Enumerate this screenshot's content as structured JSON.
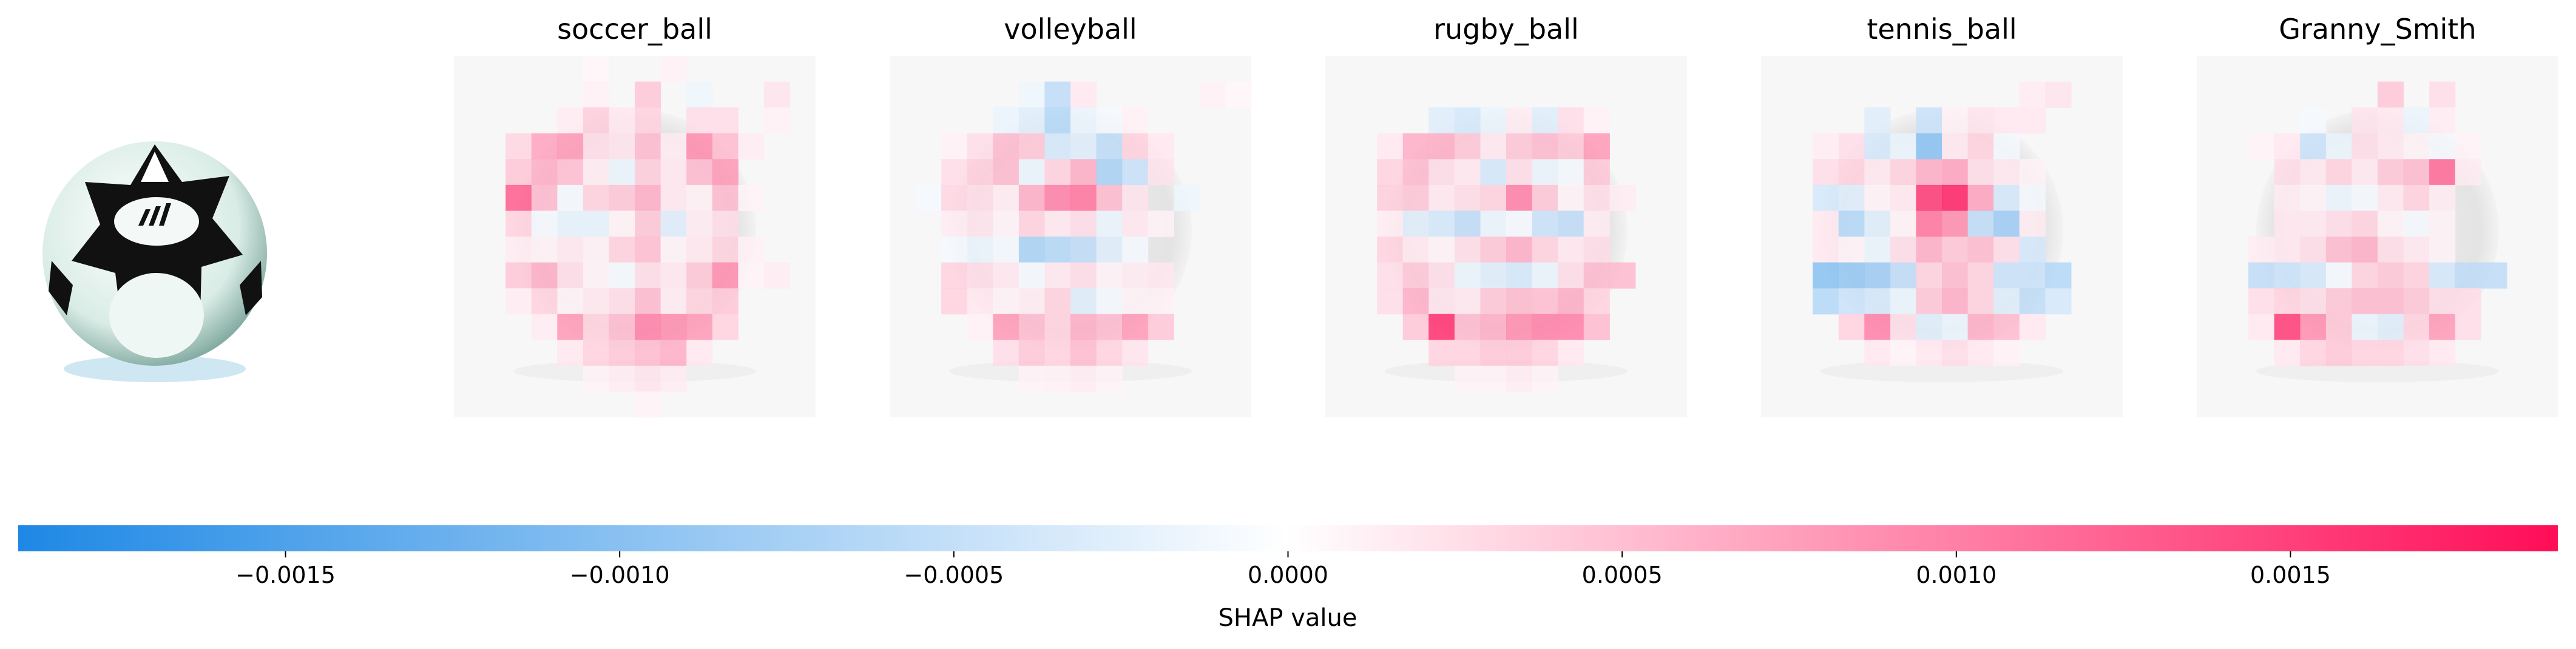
{
  "chart_data": {
    "type": "heatmap",
    "panels": [
      {
        "title": "soccer_ball",
        "grid": [
          [
            0,
            0,
            0,
            0,
            0,
            0.04,
            0,
            0,
            0.06,
            0,
            0,
            0,
            0,
            0
          ],
          [
            0,
            0,
            0,
            0,
            0,
            0.06,
            0,
            0.25,
            0,
            -0.08,
            0,
            0,
            0.12,
            0
          ],
          [
            0,
            0,
            0,
            0,
            0.08,
            0.22,
            0.1,
            0.2,
            0,
            0.15,
            0.15,
            0,
            0.06,
            0
          ],
          [
            0,
            0,
            0.18,
            0.4,
            0.45,
            0.15,
            0.12,
            0.3,
            0.08,
            0.5,
            0.3,
            0.08,
            0,
            0
          ],
          [
            0,
            0,
            0.25,
            0.35,
            0.28,
            0.08,
            -0.1,
            0.22,
            0.1,
            0.3,
            0.45,
            0,
            0,
            0
          ],
          [
            0,
            0,
            0.7,
            0.3,
            -0.05,
            0.2,
            0.25,
            0.35,
            0.1,
            0.06,
            0.3,
            0.05,
            0,
            0
          ],
          [
            0,
            0,
            0.2,
            -0.05,
            -0.12,
            -0.12,
            0.05,
            0.25,
            -0.15,
            0.08,
            0.15,
            0,
            0,
            0
          ],
          [
            0,
            0,
            0.08,
            0.05,
            0.1,
            0.06,
            0.2,
            0.28,
            0.05,
            0.1,
            0.2,
            0.06,
            0,
            0
          ],
          [
            0,
            0,
            0.25,
            0.35,
            0.15,
            0.05,
            -0.05,
            0.15,
            0.1,
            0.25,
            0.5,
            0.05,
            0.08,
            0
          ],
          [
            0,
            0,
            0.08,
            0.2,
            0.05,
            0.1,
            0.15,
            0.3,
            0.08,
            0.2,
            0.25,
            0,
            0,
            0
          ],
          [
            0,
            0,
            0,
            0.08,
            0.45,
            0.2,
            0.3,
            0.55,
            0.5,
            0.45,
            0.2,
            0,
            0,
            0
          ],
          [
            0,
            0,
            0,
            0,
            0.1,
            0.2,
            0.25,
            0.3,
            0.35,
            0.1,
            0,
            0,
            0,
            0
          ],
          [
            0,
            0,
            0,
            0,
            0,
            0.05,
            0.08,
            0.12,
            0.08,
            0,
            0,
            0,
            0,
            0
          ],
          [
            0,
            0,
            0,
            0,
            0,
            0,
            0,
            0.05,
            0,
            0,
            0,
            0,
            0,
            0
          ]
        ]
      },
      {
        "title": "volleyball",
        "grid": [
          [
            0,
            0,
            0,
            0,
            0,
            0,
            0,
            0,
            0,
            0,
            0,
            0,
            0,
            0
          ],
          [
            0,
            0,
            0,
            0,
            0,
            -0.08,
            -0.3,
            0.1,
            0,
            0,
            0,
            0,
            0.06,
            0.04
          ],
          [
            0,
            0,
            0,
            0,
            -0.1,
            -0.15,
            -0.35,
            -0.1,
            -0.05,
            0.06,
            0,
            0,
            0,
            0
          ],
          [
            0,
            0,
            0.06,
            0.15,
            0.3,
            0.25,
            -0.2,
            -0.15,
            -0.3,
            0.2,
            0.1,
            0,
            0,
            0
          ],
          [
            0,
            0,
            0.15,
            0.22,
            0.3,
            -0.1,
            0.2,
            0.35,
            -0.4,
            -0.25,
            0.12,
            0,
            0,
            0
          ],
          [
            0,
            -0.05,
            0.18,
            0.15,
            0.08,
            0.35,
            0.55,
            0.6,
            0.3,
            0.12,
            0,
            -0.08,
            0,
            0
          ],
          [
            0,
            0,
            0.08,
            0.12,
            0.05,
            0.2,
            0.1,
            0.15,
            -0.1,
            0.1,
            0.05,
            0,
            0,
            0
          ],
          [
            0,
            0,
            -0.05,
            -0.1,
            -0.05,
            -0.4,
            -0.35,
            -0.3,
            -0.15,
            -0.05,
            0,
            0,
            0,
            0
          ],
          [
            0,
            0,
            0.2,
            0.15,
            0.1,
            -0.05,
            0.1,
            0.15,
            0.05,
            0.08,
            0.1,
            0,
            0,
            0
          ],
          [
            0,
            0,
            0.2,
            0.1,
            0.05,
            0.08,
            0.2,
            -0.15,
            -0.05,
            0.05,
            0.06,
            0,
            0,
            0
          ],
          [
            0,
            0,
            0,
            0.06,
            0.45,
            0.3,
            0.2,
            0.35,
            0.3,
            0.45,
            0.25,
            0,
            0,
            0
          ],
          [
            0,
            0,
            0,
            0,
            0.15,
            0.25,
            0.2,
            0.3,
            0.2,
            0.12,
            0,
            0,
            0,
            0
          ],
          [
            0,
            0,
            0,
            0,
            0,
            0.05,
            0.06,
            0.08,
            0.05,
            0,
            0,
            0,
            0,
            0
          ],
          [
            0,
            0,
            0,
            0,
            0,
            0,
            0,
            0,
            0,
            0,
            0,
            0,
            0,
            0
          ]
        ]
      },
      {
        "title": "rugby_ball",
        "grid": [
          [
            0,
            0,
            0,
            0,
            0,
            0,
            0,
            0,
            0,
            0,
            0,
            0,
            0,
            0
          ],
          [
            0,
            0,
            0,
            0,
            0,
            0,
            0,
            0,
            0,
            0,
            0,
            0,
            0,
            0
          ],
          [
            0,
            0,
            0,
            0,
            -0.15,
            -0.2,
            -0.1,
            0.08,
            -0.15,
            0.15,
            0.06,
            0,
            0,
            0
          ],
          [
            0,
            0,
            0.1,
            0.35,
            0.35,
            0.25,
            0.1,
            0.25,
            0.3,
            0.25,
            0.45,
            0,
            0,
            0
          ],
          [
            0,
            0,
            0.2,
            0.3,
            0.15,
            0.1,
            -0.2,
            0.15,
            -0.1,
            -0.05,
            0.25,
            0,
            0,
            0
          ],
          [
            0,
            0,
            0.22,
            0.25,
            0.1,
            0.15,
            0.2,
            0.55,
            0.25,
            0.05,
            0.15,
            0.08,
            0,
            0
          ],
          [
            0,
            0,
            0.08,
            -0.15,
            -0.2,
            -0.3,
            -0.1,
            -0.05,
            -0.25,
            -0.3,
            0.08,
            0,
            0,
            0
          ],
          [
            0,
            0,
            0.2,
            0.1,
            0.05,
            0.15,
            0.25,
            0.35,
            0.2,
            0.1,
            0.15,
            0,
            0,
            0
          ],
          [
            0,
            0,
            0.15,
            0.25,
            0.15,
            -0.1,
            -0.15,
            -0.2,
            -0.1,
            0.15,
            0.3,
            0.3,
            0,
            0
          ],
          [
            0,
            0,
            0.15,
            0.35,
            0.12,
            0.1,
            0.25,
            0.3,
            0.28,
            0.35,
            0.2,
            0,
            0,
            0
          ],
          [
            0,
            0,
            0,
            0.25,
            0.9,
            0.3,
            0.35,
            0.5,
            0.55,
            0.55,
            0.3,
            0,
            0,
            0
          ],
          [
            0,
            0,
            0,
            0,
            0.2,
            0.2,
            0.25,
            0.25,
            0.2,
            0.1,
            0,
            0,
            0,
            0
          ],
          [
            0,
            0,
            0,
            0,
            0,
            0.05,
            0.05,
            0.08,
            0.05,
            0,
            0,
            0,
            0,
            0
          ],
          [
            0,
            0,
            0,
            0,
            0,
            0,
            0,
            0,
            0,
            0,
            0,
            0,
            0,
            0
          ]
        ]
      },
      {
        "title": "tennis_ball",
        "grid": [
          [
            0,
            0,
            0,
            0,
            0,
            0,
            0,
            0,
            0,
            0,
            0,
            0,
            0,
            0
          ],
          [
            0,
            0,
            0,
            0,
            0,
            0,
            0,
            0,
            0,
            0,
            0.08,
            0.12,
            0,
            0
          ],
          [
            0,
            0,
            0,
            0,
            -0.15,
            0,
            -0.25,
            0.06,
            0.12,
            0.1,
            0.1,
            0,
            0,
            0
          ],
          [
            0,
            0,
            0.08,
            0.15,
            -0.2,
            -0.1,
            -0.55,
            0.1,
            0.2,
            -0.05,
            0,
            0,
            0,
            0
          ],
          [
            0,
            0,
            0.15,
            0.2,
            0.1,
            0.2,
            0.35,
            0.4,
            0.15,
            0.1,
            0.05,
            0,
            0,
            0
          ],
          [
            0,
            0,
            -0.2,
            -0.15,
            0.05,
            0.1,
            0.85,
            0.95,
            0.4,
            -0.2,
            -0.05,
            0,
            0,
            0
          ],
          [
            0,
            0,
            0.1,
            -0.35,
            -0.15,
            0.05,
            0.6,
            0.5,
            -0.3,
            -0.45,
            0.08,
            0,
            0,
            0
          ],
          [
            0,
            0,
            0.1,
            0.05,
            -0.1,
            0.15,
            0.35,
            0.25,
            0.3,
            0.15,
            -0.2,
            0,
            0,
            0
          ],
          [
            0,
            0,
            -0.55,
            -0.5,
            -0.45,
            -0.3,
            0.2,
            0.3,
            0.2,
            -0.25,
            -0.25,
            -0.35,
            0,
            0
          ],
          [
            0,
            0,
            -0.35,
            -0.25,
            -0.2,
            -0.1,
            0.25,
            0.35,
            0.2,
            -0.15,
            -0.3,
            -0.2,
            0,
            0
          ],
          [
            0,
            0,
            0,
            0.2,
            0.55,
            0.15,
            -0.15,
            -0.1,
            0.35,
            0.3,
            0.1,
            0,
            0,
            0
          ],
          [
            0,
            0,
            0,
            0,
            0.1,
            0.05,
            0.1,
            0.15,
            0.1,
            0.06,
            0,
            0,
            0,
            0
          ],
          [
            0,
            0,
            0,
            0,
            0,
            0,
            0,
            0,
            0,
            0,
            0,
            0,
            0,
            0
          ],
          [
            0,
            0,
            0,
            0,
            0,
            0,
            0,
            0,
            0,
            0,
            0,
            0,
            0,
            0
          ]
        ]
      },
      {
        "title": "Granny_Smith",
        "grid": [
          [
            0,
            0,
            0,
            0,
            0,
            0,
            0,
            0,
            0,
            0,
            0,
            0,
            0,
            0
          ],
          [
            0,
            0,
            0,
            0,
            0,
            0,
            0,
            0.25,
            0,
            0.15,
            0,
            0,
            0,
            0
          ],
          [
            0,
            0,
            0,
            0,
            -0.05,
            0,
            0.12,
            0.1,
            -0.1,
            0.08,
            0,
            0,
            0,
            0
          ],
          [
            0,
            0,
            0.05,
            0.1,
            -0.25,
            -0.1,
            0.15,
            0.1,
            0.05,
            -0.05,
            0.05,
            0,
            0,
            0
          ],
          [
            0,
            0,
            0,
            0.15,
            0.1,
            0.2,
            0.1,
            0.25,
            0.3,
            0.65,
            0.08,
            0,
            0,
            0
          ],
          [
            0,
            0,
            0,
            0.08,
            0.05,
            -0.1,
            -0.05,
            0.1,
            0.2,
            0.08,
            0,
            0,
            0,
            0
          ],
          [
            0,
            0,
            0,
            0.1,
            0.1,
            0.15,
            0.2,
            0.05,
            -0.05,
            0.05,
            0,
            0,
            0,
            0
          ],
          [
            0,
            0,
            0.08,
            0.1,
            0.15,
            0.3,
            0.35,
            0.15,
            0.1,
            0.05,
            0,
            0,
            0,
            0
          ],
          [
            0,
            0,
            -0.3,
            -0.25,
            -0.2,
            -0.05,
            0.2,
            0.25,
            0.2,
            -0.2,
            -0.3,
            -0.3,
            0,
            0
          ],
          [
            0,
            0,
            0.15,
            0.2,
            0.15,
            0.25,
            0.3,
            0.3,
            0.25,
            0.15,
            0.15,
            0,
            0,
            0
          ],
          [
            0,
            0,
            0.1,
            0.85,
            0.5,
            0.25,
            -0.1,
            -0.15,
            0.2,
            0.45,
            0.15,
            0,
            0,
            0
          ],
          [
            0,
            0,
            0,
            0.1,
            0.2,
            0.25,
            0.2,
            0.2,
            0.15,
            0.1,
            0,
            0,
            0,
            0
          ],
          [
            0,
            0,
            0,
            0,
            0,
            0,
            0,
            0,
            0,
            0,
            0,
            0,
            0,
            0
          ],
          [
            0,
            0,
            0,
            0,
            0,
            0,
            0,
            0,
            0,
            0,
            0,
            0,
            0,
            0
          ]
        ]
      }
    ],
    "value_scale": 0.0019,
    "colorbar": {
      "label": "SHAP value",
      "range": [
        -0.0019,
        0.0019
      ],
      "ticks": [
        {
          "value": -0.0015,
          "label": "−0.0015"
        },
        {
          "value": -0.001,
          "label": "−0.0010"
        },
        {
          "value": -0.0005,
          "label": "−0.0005"
        },
        {
          "value": 0.0,
          "label": "0.0000"
        },
        {
          "value": 0.0005,
          "label": "0.0005"
        },
        {
          "value": 0.001,
          "label": "0.0010"
        },
        {
          "value": 0.0015,
          "label": "0.0015"
        }
      ]
    },
    "colors": {
      "negative": "#1e88e5",
      "positive": "#ff0d57",
      "neutral": "#ffffff"
    }
  }
}
